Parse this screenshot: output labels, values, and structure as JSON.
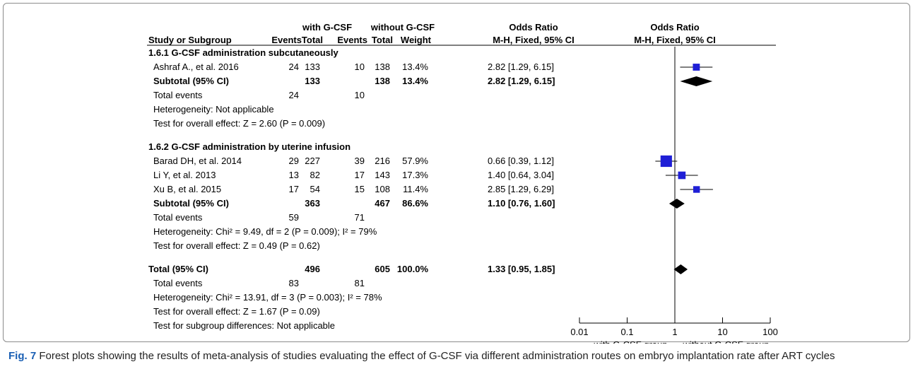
{
  "chart_data": {
    "type": "forest",
    "groups": [
      {
        "column_group": "with G-CSF",
        "columns": [
          "Events",
          "Total"
        ]
      },
      {
        "column_group": "without G-CSF",
        "columns": [
          "Events",
          "Total"
        ]
      }
    ],
    "header": {
      "study": "Study or Subgroup",
      "exp_group": "with G-CSF",
      "ctrl_group": "without G-CSF",
      "events": "Events",
      "total": "Total",
      "weight": "Weight",
      "or_title": "Odds Ratio",
      "or_method": "M-H, Fixed, 95% CI",
      "plot_title": "Odds Ratio",
      "plot_method": "M-H, Fixed, 95% CI"
    },
    "rows": [
      {
        "kind": "subgroup",
        "label": "1.6.1 G-CSF administration subcutaneously"
      },
      {
        "kind": "study",
        "label": "Ashraf A., et al. 2016",
        "ev1": "24",
        "tot1": "133",
        "ev2": "10",
        "tot2": "138",
        "weight": "13.4%",
        "ci_text": "2.82 [1.29, 6.15]",
        "or": 2.82,
        "lo": 1.29,
        "hi": 6.15
      },
      {
        "kind": "subtotal",
        "label": "Subtotal (95% CI)",
        "tot1": "133",
        "tot2": "138",
        "weight": "13.4%",
        "ci_text": "2.82 [1.29, 6.15]",
        "or": 2.82,
        "lo": 1.29,
        "hi": 6.15
      },
      {
        "kind": "text",
        "label": "Total events",
        "ev1": "24",
        "ev2": "10"
      },
      {
        "kind": "text",
        "label": "Heterogeneity: Not applicable"
      },
      {
        "kind": "text",
        "label": "Test for overall effect: Z = 2.60 (P = 0.009)"
      },
      {
        "kind": "spacer"
      },
      {
        "kind": "subgroup",
        "label": "1.6.2 G-CSF administration by uterine infusion"
      },
      {
        "kind": "study",
        "label": "Barad DH, et al. 2014",
        "ev1": "29",
        "tot1": "227",
        "ev2": "39",
        "tot2": "216",
        "weight": "57.9%",
        "ci_text": "0.66 [0.39, 1.12]",
        "or": 0.66,
        "lo": 0.39,
        "hi": 1.12
      },
      {
        "kind": "study",
        "label": "Li Y, et al. 2013",
        "ev1": "13",
        "tot1": "82",
        "ev2": "17",
        "tot2": "143",
        "weight": "17.3%",
        "ci_text": "1.40 [0.64, 3.04]",
        "or": 1.4,
        "lo": 0.64,
        "hi": 3.04
      },
      {
        "kind": "study",
        "label": "Xu B, et al. 2015",
        "ev1": "17",
        "tot1": "54",
        "ev2": "15",
        "tot2": "108",
        "weight": "11.4%",
        "ci_text": "2.85 [1.29, 6.29]",
        "or": 2.85,
        "lo": 1.29,
        "hi": 6.29
      },
      {
        "kind": "subtotal",
        "label": "Subtotal (95% CI)",
        "tot1": "363",
        "tot2": "467",
        "weight": "86.6%",
        "ci_text": "1.10 [0.76, 1.60]",
        "or": 1.1,
        "lo": 0.76,
        "hi": 1.6
      },
      {
        "kind": "text",
        "label": "Total events",
        "ev1": "59",
        "ev2": "71"
      },
      {
        "kind": "text",
        "label": "Heterogeneity: Chi² = 9.49, df = 2 (P = 0.009); I² = 79%"
      },
      {
        "kind": "text",
        "label": "Test for overall effect: Z = 0.49 (P = 0.62)"
      },
      {
        "kind": "spacer"
      },
      {
        "kind": "total",
        "label": "Total (95% CI)",
        "tot1": "496",
        "tot2": "605",
        "weight": "100.0%",
        "ci_text": "1.33 [0.95, 1.85]",
        "or": 1.33,
        "lo": 0.95,
        "hi": 1.85
      },
      {
        "kind": "text",
        "label": "Total events",
        "ev1": "83",
        "ev2": "81"
      },
      {
        "kind": "text",
        "label": "Heterogeneity: Chi² = 13.91, df = 3 (P = 0.003); I² = 78%"
      },
      {
        "kind": "text",
        "label": "Test for overall effect: Z = 1.67 (P = 0.09)"
      },
      {
        "kind": "small",
        "label": "Test for subgroup  differences: Not applicable"
      }
    ],
    "x_axis": {
      "scale": "log",
      "ticks": [
        0.01,
        0.1,
        1,
        10,
        100
      ],
      "tick_labels": [
        "0.01",
        "0.1",
        "1",
        "10",
        "100"
      ],
      "xlim": [
        0.01,
        100
      ],
      "favours_left": "with G-CSF group",
      "favours_right": "without G-CSF group"
    },
    "colors": {
      "study_marker": "#1f1fd6",
      "diamond": "#000000"
    }
  },
  "caption": {
    "label": "Fig. 7",
    "text": " Forest plots showing the results of meta-analysis of studies evaluating the effect of G-CSF via different administration routes on embryo implantation rate after ART cycles"
  }
}
